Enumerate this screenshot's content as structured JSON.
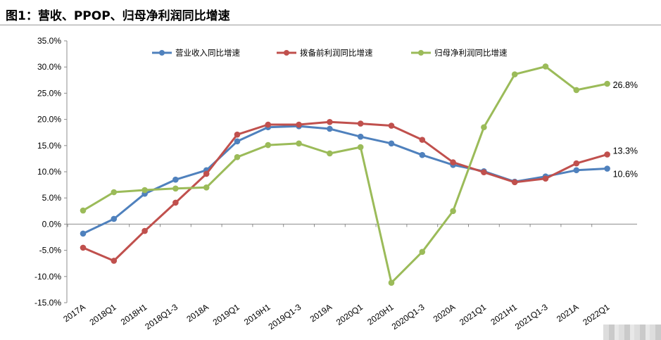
{
  "title": "图1：营收、PPOP、归母净利润同比增速",
  "chart_data": {
    "type": "line",
    "categories": [
      "2017A",
      "2018Q1",
      "2018H1",
      "2018Q1-3",
      "2018A",
      "2019Q1",
      "2019H1",
      "2019Q1-3",
      "2019A",
      "2020Q1",
      "2020H1",
      "2020Q1-3",
      "2020A",
      "2021Q1",
      "2021H1",
      "2021Q1-3",
      "2021A",
      "2022Q1"
    ],
    "ylim": [
      -15,
      35
    ],
    "yticks": [
      -15,
      -10,
      -5,
      0,
      5,
      10,
      15,
      20,
      25,
      30,
      35
    ],
    "y_format": "percent_1dp",
    "legend_position": "top",
    "series": [
      {
        "name": "营业收入同比增速",
        "color": "#4f81bd",
        "values": [
          -1.8,
          1.0,
          5.8,
          8.5,
          10.3,
          15.8,
          18.5,
          18.7,
          18.2,
          16.7,
          15.4,
          13.2,
          11.3,
          10.1,
          8.1,
          9.1,
          10.3,
          10.6
        ]
      },
      {
        "name": "拨备前利润同比增速",
        "color": "#c0504d",
        "values": [
          -4.5,
          -7.0,
          -1.3,
          4.1,
          9.6,
          17.1,
          19.0,
          19.0,
          19.5,
          19.2,
          18.8,
          16.1,
          11.8,
          9.9,
          8.0,
          8.7,
          11.6,
          13.3
        ]
      },
      {
        "name": "归母净利润同比增速",
        "color": "#9bbb59",
        "values": [
          2.6,
          6.1,
          6.5,
          6.8,
          7.0,
          12.8,
          15.1,
          15.4,
          13.5,
          14.7,
          -11.2,
          -5.3,
          2.5,
          18.5,
          28.6,
          30.1,
          25.6,
          26.8
        ]
      }
    ],
    "end_labels": [
      "10.6%",
      "13.3%",
      "26.8%"
    ]
  }
}
